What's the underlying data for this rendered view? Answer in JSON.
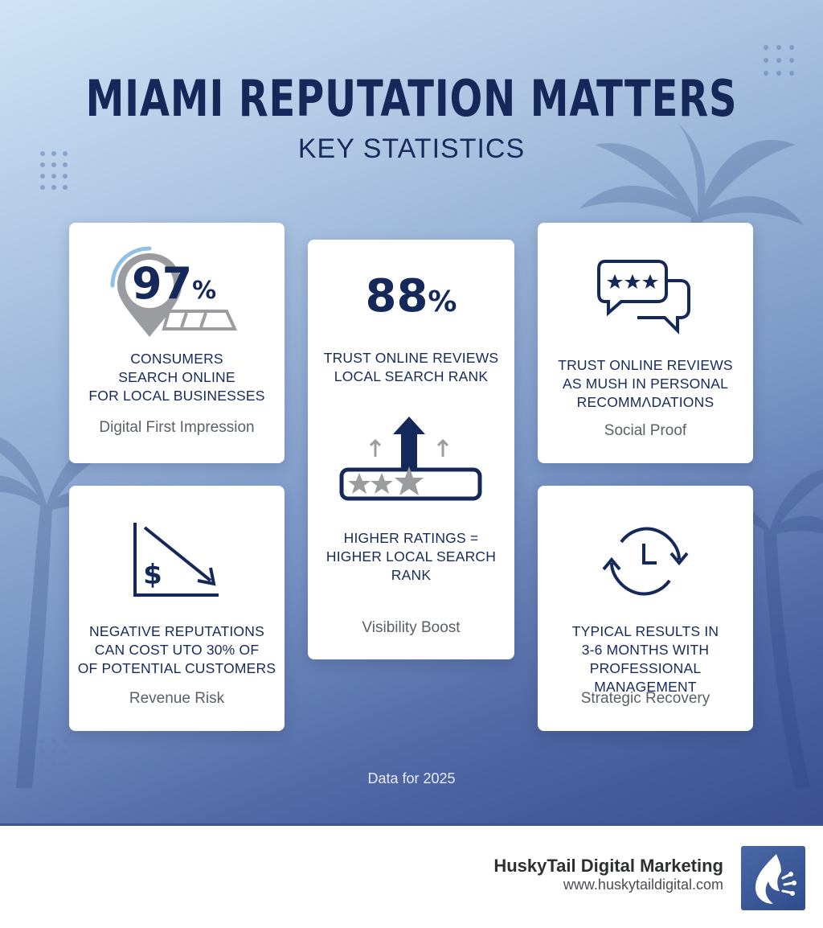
{
  "header": {
    "title": "MIAMI REPUTATION MATTERS",
    "subtitle": "KEY STATISTICS"
  },
  "cards": {
    "search": {
      "stat_number": "97",
      "stat_suffix": "%",
      "label_lines": [
        "CONSUMERS",
        "SEARCH ONLINE",
        "FOR LOCAL BUSINESSES"
      ],
      "tag": "Digital First Impression",
      "icon": "map-pin-icon"
    },
    "trust": {
      "stat_number": "88",
      "stat_suffix": "%",
      "label_lines": [
        "TRUST ONLINE REVIEWS",
        "LOCAL SEARCH RANK"
      ],
      "label2_lines": [
        "HIGHER RATINGS =",
        "HIGHER LOCAL SEARCH",
        "RANK"
      ],
      "tag": "Visibility Boost",
      "icon": "rating-arrow-up-icon"
    },
    "social": {
      "label_lines": [
        "TRUST ONLINE REVIEWS",
        "AS MUSH IN PERSONAL",
        "RECOMMΛDATIONS"
      ],
      "tag": "Social Proof",
      "icon": "chat-stars-icon"
    },
    "revenue": {
      "label_lines": [
        "NEGATIVE REPUTATIONS",
        "CAN COST UTO 30% OF",
        "OF POTENTIAL CUSTOMERS"
      ],
      "tag": "Revenue Risk",
      "icon": "dollar-decline-icon"
    },
    "recovery": {
      "label_lines": [
        "TYPICAL RESULTS IN",
        "3-6 MONTHS WITH",
        "PROFESSIONAL MANAGEMENT"
      ],
      "tag": "Strategic Recovery",
      "icon": "clock-cycle-icon"
    }
  },
  "footnote": "Data for 2025",
  "brand": {
    "name": "HuskyTail Digital Marketing",
    "url": "www.huskytaildigital.com",
    "logo_icon": "husky-flame-logo-icon"
  },
  "colors": {
    "navy": "#15285a",
    "gray_text": "#5b5f66",
    "card_bg": "#ffffff",
    "logo_bg": "#3b5996"
  }
}
